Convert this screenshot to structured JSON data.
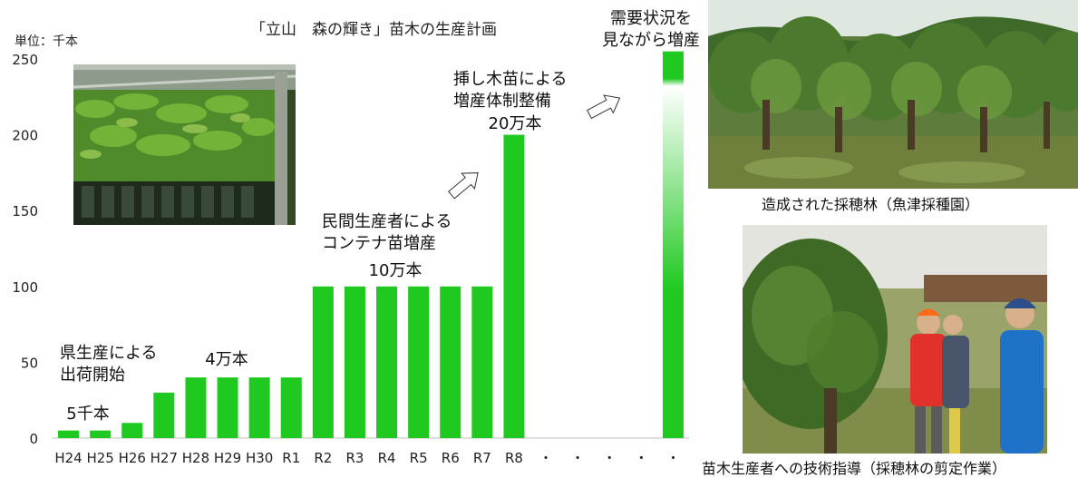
{
  "chart_data": {
    "type": "bar",
    "title": "「立山　森の輝き」苗木の生産計画",
    "unit_label": "単位：千本",
    "categories": [
      "H24",
      "H25",
      "H26",
      "H27",
      "H28",
      "H29",
      "H30",
      "R1",
      "R2",
      "R3",
      "R4",
      "R5",
      "R6",
      "R7",
      "R8",
      "・",
      "・",
      "・",
      "・",
      "・"
    ],
    "values": [
      5,
      5,
      10,
      30,
      40,
      40,
      40,
      40,
      100,
      100,
      100,
      100,
      100,
      100,
      200,
      null,
      null,
      null,
      null,
      255
    ],
    "ylim": [
      0,
      250
    ],
    "yticks": [
      0,
      50,
      100,
      150,
      200,
      250
    ],
    "grid": false,
    "bar_color": "#1fc91f",
    "annotations": [
      {
        "lines": [
          "県生産による",
          "出荷開始"
        ]
      },
      {
        "lines": [
          "5千本"
        ]
      },
      {
        "lines": [
          "4万本"
        ]
      },
      {
        "lines": [
          "民間生産者による",
          "コンテナ苗増産"
        ]
      },
      {
        "lines": [
          "10万本"
        ]
      },
      {
        "lines": [
          "挿し木苗による",
          "増産体制整備"
        ]
      },
      {
        "lines": [
          "20万本"
        ]
      },
      {
        "lines": [
          "需要状況を",
          "見ながら増産"
        ]
      }
    ]
  },
  "photos": {
    "top_right_caption": "造成された採穂林（魚津採種園）",
    "bottom_right_caption": "苗木生産者への技術指導（採穂林の剪定作業）"
  }
}
